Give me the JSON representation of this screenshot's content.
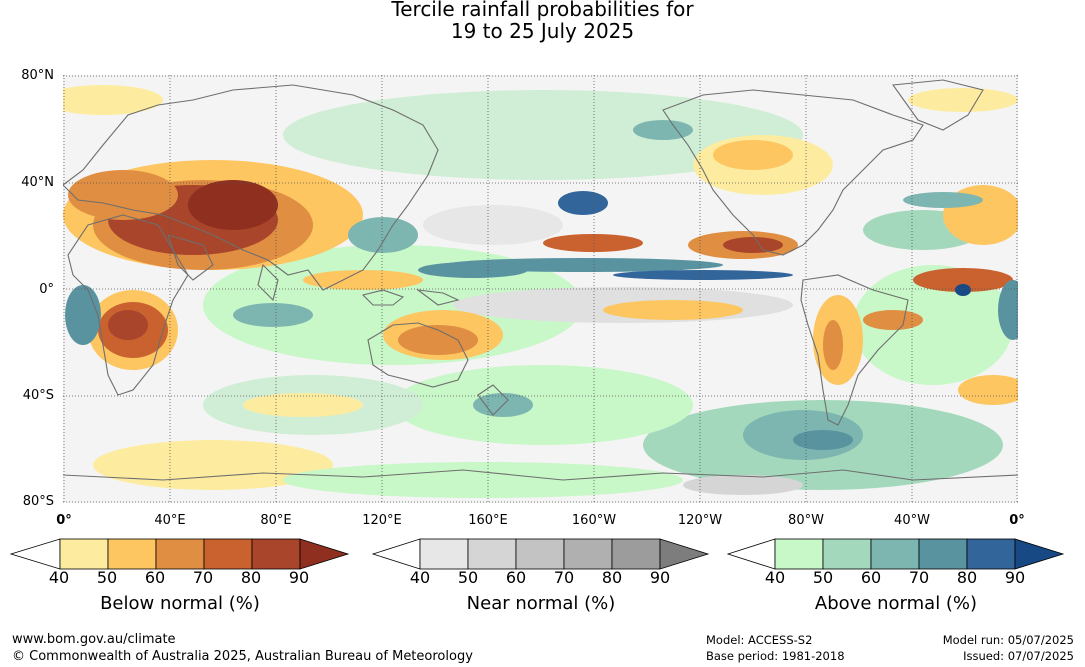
{
  "title": {
    "line1": "Tercile rainfall probabilities for",
    "line2": "19 to 25 July 2025"
  },
  "map": {
    "lat_labels": [
      "80°N",
      "40°N",
      "0°",
      "40°S",
      "80°S"
    ],
    "lon_labels": [
      "0°",
      "40°E",
      "80°E",
      "120°E",
      "160°E",
      "160°W",
      "120°W",
      "80°W",
      "40°W",
      "0°"
    ]
  },
  "legends": [
    {
      "label": "Below normal (%)",
      "ticks": [
        "40",
        "50",
        "60",
        "70",
        "80",
        "90"
      ],
      "colors": [
        "#ffffff",
        "#fdeca0",
        "#fdc661",
        "#e08e42",
        "#c9622f",
        "#a9452a",
        "#8e2f1f"
      ]
    },
    {
      "label": "Near normal (%)",
      "ticks": [
        "40",
        "50",
        "60",
        "70",
        "80",
        "90"
      ],
      "colors": [
        "#ffffff",
        "#e7e7e7",
        "#d5d5d5",
        "#c3c3c3",
        "#b0b0b0",
        "#9c9c9c",
        "#7d7d7d"
      ]
    },
    {
      "label": "Above normal (%)",
      "ticks": [
        "40",
        "50",
        "60",
        "70",
        "80",
        "90"
      ],
      "colors": [
        "#ffffff",
        "#c8f7c8",
        "#a4d8bc",
        "#7db6b0",
        "#5a93a0",
        "#32669b",
        "#174a85"
      ]
    }
  ],
  "footer": {
    "url": "www.bom.gov.au/climate",
    "copyright": "© Commonwealth of Australia 2025, Australian Bureau of Meteorology",
    "model": "Model: ACCESS-S2",
    "base_period": "Base period: 1981-2018",
    "model_run": "Model run: 05/07/2025",
    "issued": "Issued: 07/07/2025"
  }
}
